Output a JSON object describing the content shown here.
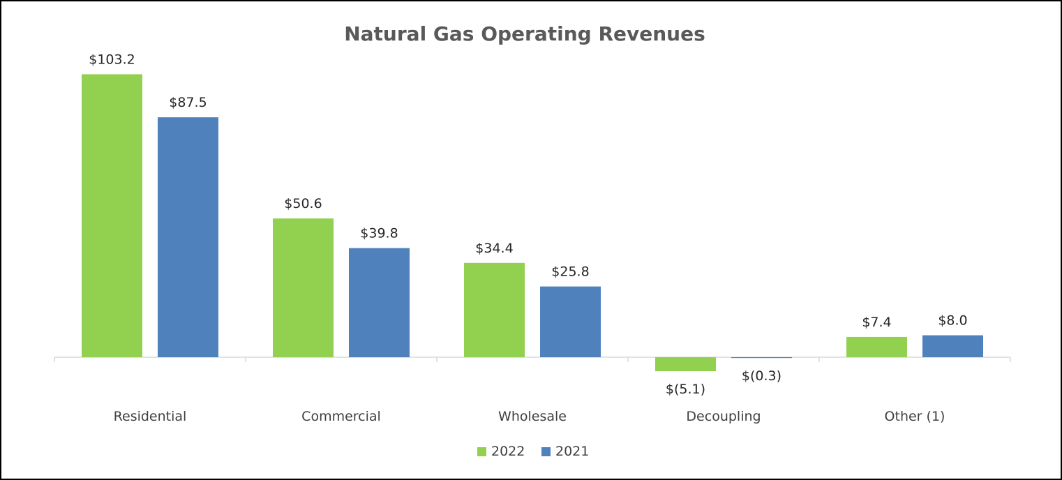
{
  "chart_data": {
    "type": "bar",
    "title": "Natural Gas Operating Revenues",
    "xlabel": "",
    "ylabel": "",
    "categories": [
      "Residential",
      "Commercial",
      "Wholesale",
      "Decoupling",
      "Other (1)"
    ],
    "series": [
      {
        "name": "2022",
        "color": "#92d050",
        "values": [
          103.2,
          50.6,
          34.4,
          -5.1,
          7.4
        ],
        "labels": [
          "$103.2",
          "$50.6",
          "$34.4",
          "$(5.1)",
          "$7.4"
        ]
      },
      {
        "name": "2021",
        "color": "#4f81bd",
        "values": [
          87.5,
          39.8,
          25.8,
          -0.3,
          8.0
        ],
        "labels": [
          "$87.5",
          "$39.8",
          "$25.8",
          "$(0.3)",
          "$8.0"
        ]
      }
    ],
    "ylim": [
      -5.1,
      103.2
    ],
    "grid": false,
    "legend": "bottom-center",
    "axis_color": "#d9d9d9"
  }
}
